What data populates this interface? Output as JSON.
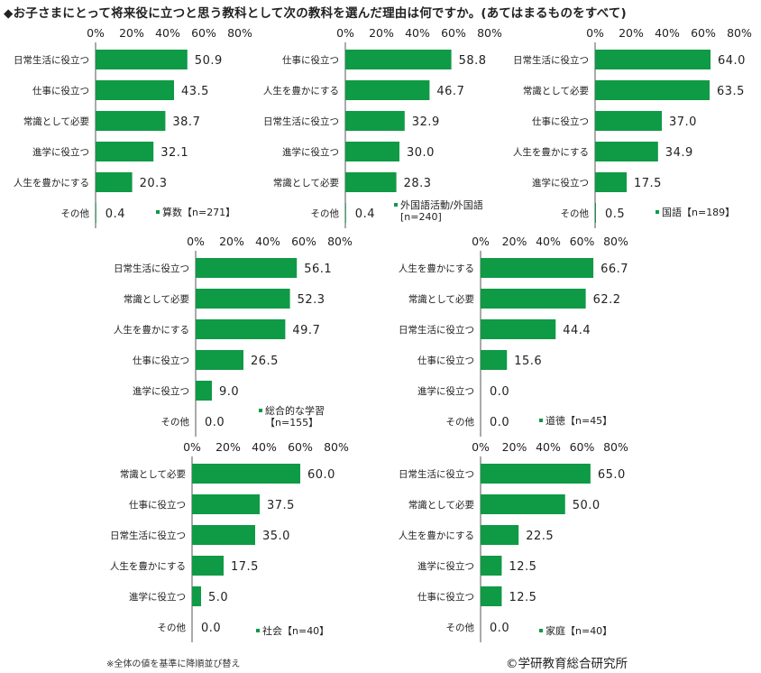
{
  "title": "◆お子さまにとって将来役に立つと思う教科として次の教科を選んだ理由は何ですか。(あてはまるものをすべて)",
  "note": "※全体の値を基準に降順並び替え",
  "credit": "©学研教育総合研究所",
  "colors": {
    "bar": "#0f9a45",
    "axis": "#555555"
  },
  "chart_data": [
    {
      "type": "bar",
      "orientation": "horizontal",
      "legend": [
        "算数【n=271】"
      ],
      "xlim": [
        0,
        80
      ],
      "ticks": [
        "0%",
        "20%",
        "40%",
        "60%",
        "80%"
      ],
      "categories": [
        "日常生活に役立つ",
        "仕事に役立つ",
        "常識として必要",
        "進学に役立つ",
        "人生を豊かにする",
        "その他"
      ],
      "values": [
        50.9,
        43.5,
        38.7,
        32.1,
        20.3,
        0.4
      ],
      "labels": [
        "50.9",
        "43.5",
        "38.7",
        "32.1",
        "20.3",
        "0.4"
      ]
    },
    {
      "type": "bar",
      "orientation": "horizontal",
      "legend": [
        "外国語活動/外国語",
        "[n=240]"
      ],
      "xlim": [
        0,
        80
      ],
      "ticks": [
        "0%",
        "20%",
        "40%",
        "60%",
        "80%"
      ],
      "categories": [
        "仕事に役立つ",
        "人生を豊かにする",
        "日常生活に役立つ",
        "進学に役立つ",
        "常識として必要",
        "その他"
      ],
      "values": [
        58.8,
        46.7,
        32.9,
        30.0,
        28.3,
        0.4
      ],
      "labels": [
        "58.8",
        "46.7",
        "32.9",
        "30.0",
        "28.3",
        "0.4"
      ]
    },
    {
      "type": "bar",
      "orientation": "horizontal",
      "legend": [
        "国語【n=189】"
      ],
      "xlim": [
        0,
        80
      ],
      "ticks": [
        "0%",
        "20%",
        "40%",
        "60%",
        "80%"
      ],
      "categories": [
        "日常生活に役立つ",
        "常識として必要",
        "仕事に役立つ",
        "人生を豊かにする",
        "進学に役立つ",
        "その他"
      ],
      "values": [
        64.0,
        63.5,
        37.0,
        34.9,
        17.5,
        0.5
      ],
      "labels": [
        "64.0",
        "63.5",
        "37.0",
        "34.9",
        "17.5",
        "0.5"
      ]
    },
    {
      "type": "bar",
      "orientation": "horizontal",
      "legend": [
        "総合的な学習",
        "【n=155】"
      ],
      "xlim": [
        0,
        80
      ],
      "ticks": [
        "0%",
        "20%",
        "40%",
        "60%",
        "80%"
      ],
      "categories": [
        "日常生活に役立つ",
        "常識として必要",
        "人生を豊かにする",
        "仕事に役立つ",
        "進学に役立つ",
        "その他"
      ],
      "values": [
        56.1,
        52.3,
        49.7,
        26.5,
        9.0,
        0.0
      ],
      "labels": [
        "56.1",
        "52.3",
        "49.7",
        "26.5",
        "9.0",
        "0.0"
      ]
    },
    {
      "type": "bar",
      "orientation": "horizontal",
      "legend": [
        "道徳【n=45】"
      ],
      "xlim": [
        0,
        80
      ],
      "ticks": [
        "0%",
        "20%",
        "40%",
        "60%",
        "80%"
      ],
      "categories": [
        "人生を豊かにする",
        "常識として必要",
        "日常生活に役立つ",
        "仕事に役立つ",
        "進学に役立つ",
        "その他"
      ],
      "values": [
        66.7,
        62.2,
        44.4,
        15.6,
        0.0,
        0.0
      ],
      "labels": [
        "66.7",
        "62.2",
        "44.4",
        "15.6",
        "0.0",
        "0.0"
      ]
    },
    {
      "type": "bar",
      "orientation": "horizontal",
      "legend": [
        "社会【n=40】"
      ],
      "xlim": [
        0,
        80
      ],
      "ticks": [
        "0%",
        "20%",
        "40%",
        "60%",
        "80%"
      ],
      "categories": [
        "常識として必要",
        "仕事に役立つ",
        "日常生活に役立つ",
        "人生を豊かにする",
        "進学に役立つ",
        "その他"
      ],
      "values": [
        60.0,
        37.5,
        35.0,
        17.5,
        5.0,
        0.0
      ],
      "labels": [
        "60.0",
        "37.5",
        "35.0",
        "17.5",
        "5.0",
        "0.0"
      ]
    },
    {
      "type": "bar",
      "orientation": "horizontal",
      "legend": [
        "家庭【n=40】"
      ],
      "xlim": [
        0,
        80
      ],
      "ticks": [
        "0%",
        "20%",
        "40%",
        "60%",
        "80%"
      ],
      "categories": [
        "日常生活に役立つ",
        "常識として必要",
        "人生を豊かにする",
        "進学に役立つ",
        "仕事に役立つ",
        "その他"
      ],
      "values": [
        65.0,
        50.0,
        22.5,
        12.5,
        12.5,
        0.0
      ],
      "labels": [
        "65.0",
        "50.0",
        "22.5",
        "12.5",
        "12.5",
        "0.0"
      ]
    }
  ]
}
